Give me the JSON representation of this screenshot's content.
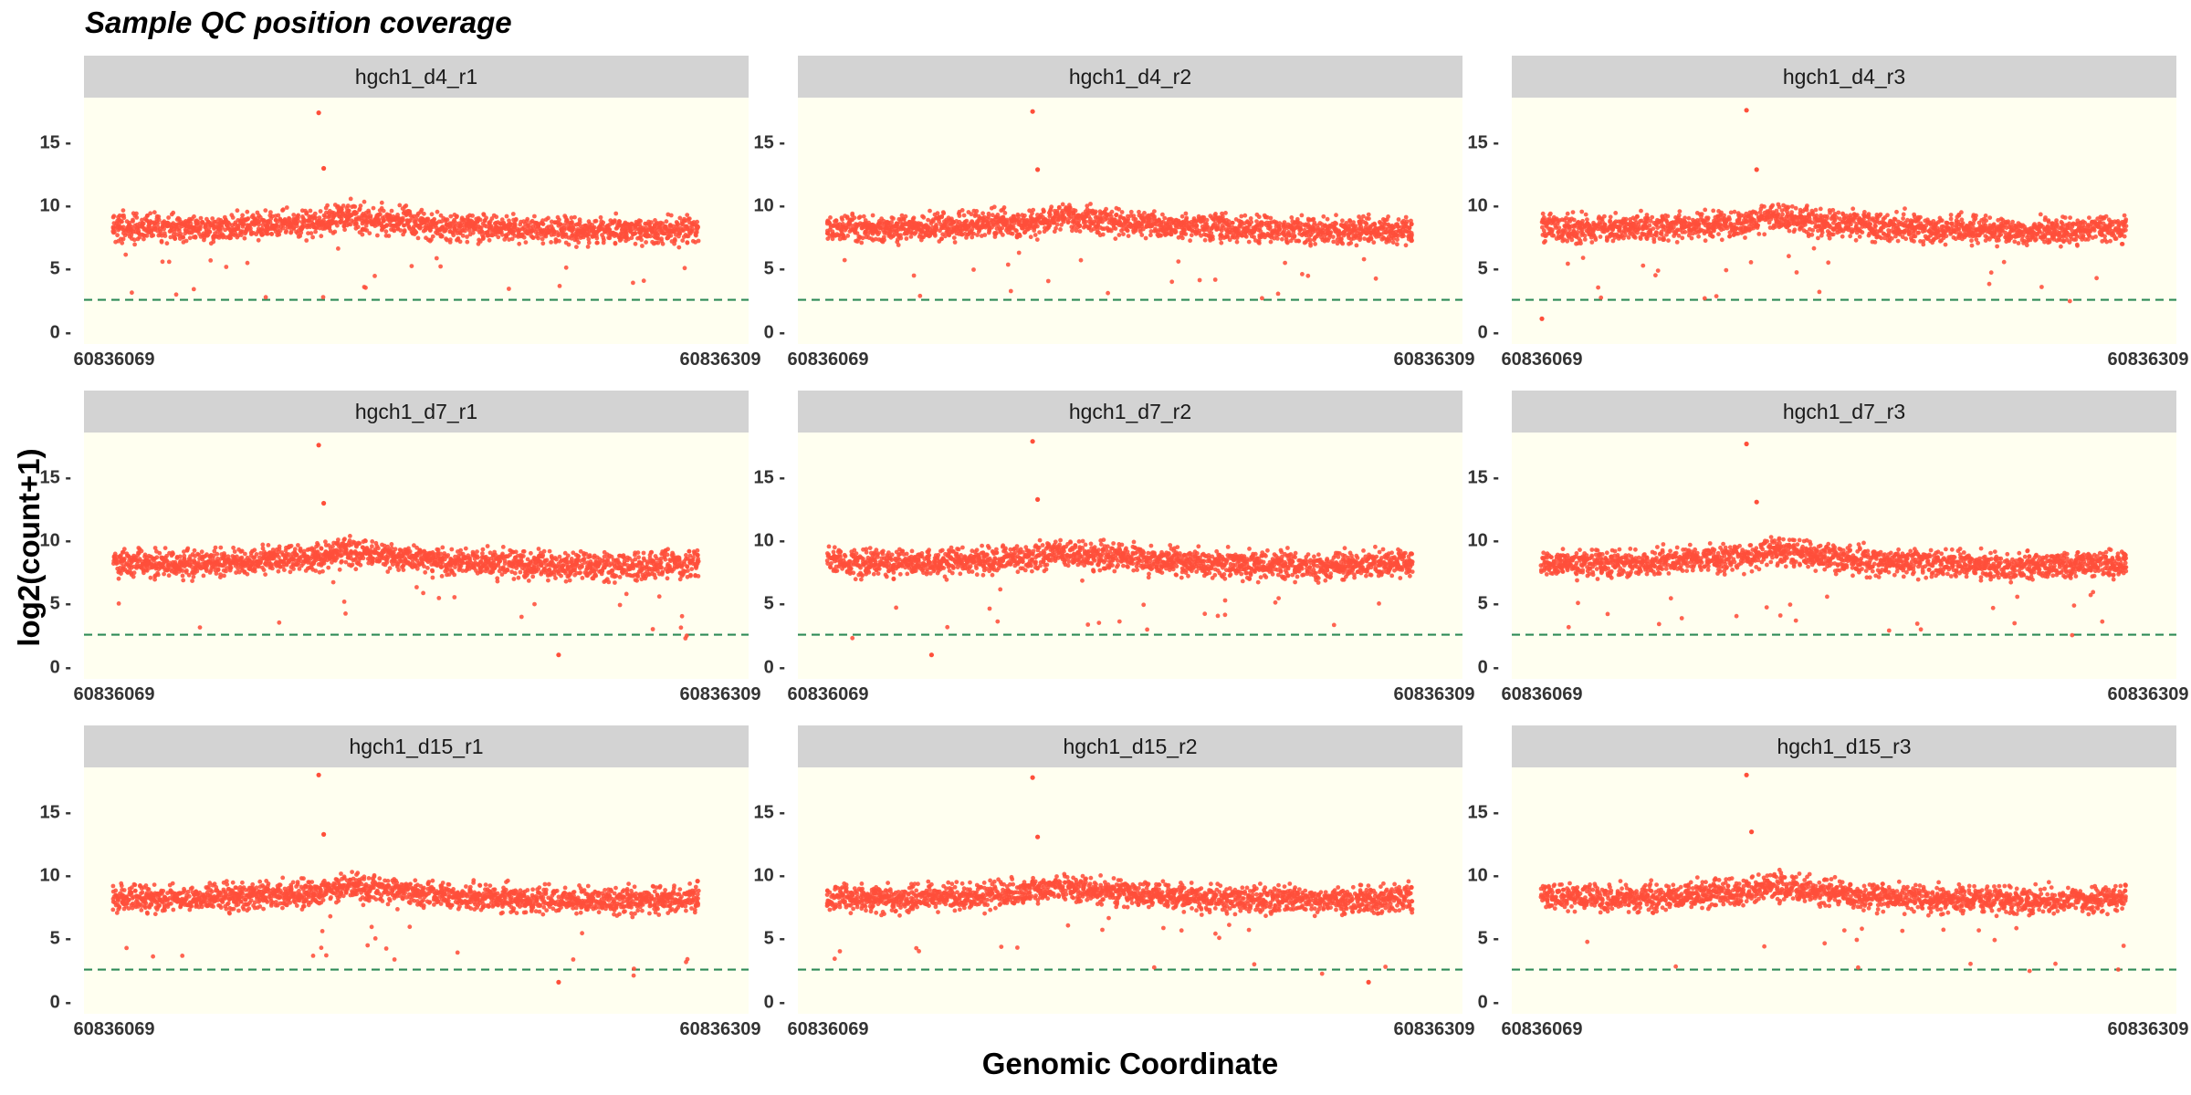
{
  "title": "Sample QC position coverage",
  "chart_data": {
    "type": "scatter",
    "facet_layout": "3x3",
    "xlabel": "Genomic Coordinate",
    "ylabel": "log2(count+1)",
    "xlim": [
      60836069,
      60836309
    ],
    "ylim": [
      -0.9,
      18.6
    ],
    "x_ticks": [
      60836069,
      60836309
    ],
    "y_ticks": [
      0,
      5,
      10,
      15
    ],
    "threshold_line": {
      "y": 2.6,
      "style": "dashed",
      "color": "#2e8b57"
    },
    "panel_background": "#fffff0",
    "strip_background": "#d3d3d3",
    "point_color": "#ff4f3a",
    "position_range": {
      "start": 60836069,
      "end": 60836300,
      "step": 1
    },
    "coverage_profile": {
      "description_points": [],
      "x": [
        60836069,
        60836100,
        60836130,
        60836150,
        60836160,
        60836180,
        60836200,
        60836230,
        60836260,
        60836298
      ],
      "median_y": [
        8.3,
        8.2,
        8.5,
        8.7,
        9.2,
        8.8,
        8.4,
        8.2,
        8.0,
        8.2
      ],
      "spread": 1.4
    },
    "panels": [
      {
        "name": "hgch1_d4_r1",
        "max_point": [
          60836150,
          17.4
        ],
        "outliers": [
          [
            60836152,
            13.0
          ],
          [
            60836300,
            8.4
          ]
        ]
      },
      {
        "name": "hgch1_d4_r2",
        "max_point": [
          60836150,
          17.5
        ],
        "outliers": [
          [
            60836152,
            12.9
          ],
          [
            60836300,
            8.6
          ]
        ]
      },
      {
        "name": "hgch1_d4_r3",
        "max_point": [
          60836150,
          17.6
        ],
        "outliers": [
          [
            60836154,
            12.9
          ],
          [
            60836300,
            8.8
          ],
          [
            60836069,
            1.1
          ]
        ]
      },
      {
        "name": "hgch1_d7_r1",
        "max_point": [
          60836150,
          17.6
        ],
        "outliers": [
          [
            60836152,
            13.0
          ],
          [
            60836300,
            8.9
          ],
          [
            60836245,
            1.0
          ]
        ]
      },
      {
        "name": "hgch1_d7_r2",
        "max_point": [
          60836150,
          17.9
        ],
        "outliers": [
          [
            60836152,
            13.3
          ],
          [
            60836300,
            9.0
          ],
          [
            60836110,
            1.0
          ]
        ]
      },
      {
        "name": "hgch1_d7_r3",
        "max_point": [
          60836150,
          17.7
        ],
        "outliers": [
          [
            60836154,
            13.1
          ],
          [
            60836300,
            8.9
          ]
        ]
      },
      {
        "name": "hgch1_d15_r1",
        "max_point": [
          60836150,
          18.0
        ],
        "outliers": [
          [
            60836152,
            13.3
          ],
          [
            60836300,
            9.6
          ],
          [
            60836245,
            1.6
          ]
        ]
      },
      {
        "name": "hgch1_d15_r2",
        "max_point": [
          60836150,
          17.8
        ],
        "outliers": [
          [
            60836152,
            13.1
          ],
          [
            60836300,
            9.1
          ],
          [
            60836283,
            1.6
          ]
        ]
      },
      {
        "name": "hgch1_d15_r3",
        "max_point": [
          60836150,
          18.0
        ],
        "outliers": [
          [
            60836152,
            13.5
          ],
          [
            60836300,
            9.3
          ]
        ]
      }
    ]
  }
}
